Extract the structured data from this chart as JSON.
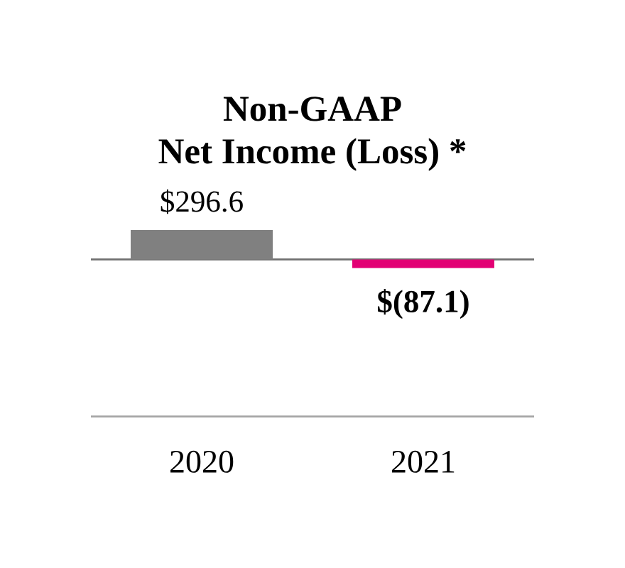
{
  "chart_data": {
    "type": "bar",
    "title": "Non-GAAP Net Income (Loss) *",
    "categories": [
      "2020",
      "2021"
    ],
    "values": [
      296.6,
      -87.1
    ],
    "colors": [
      "#808080",
      "#e20074"
    ],
    "value_labels": [
      "$296.6",
      "$(87.1)"
    ],
    "ref_lines": [
      {
        "axis": "y",
        "value": 0,
        "color": "#707070"
      }
    ],
    "tick_labels": "x"
  }
}
